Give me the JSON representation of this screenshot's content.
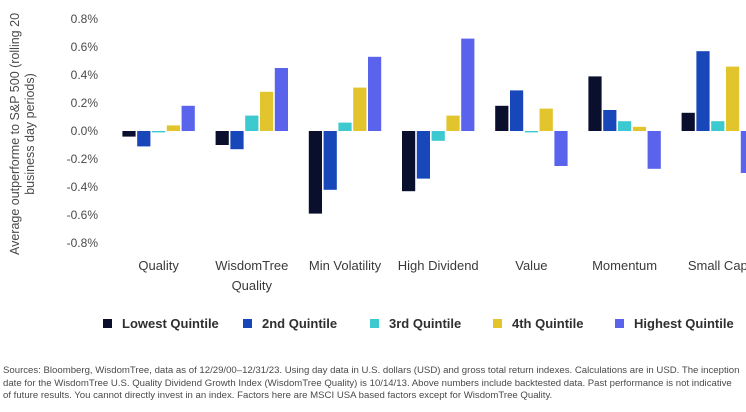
{
  "chart_data": {
    "type": "bar",
    "ylabel": "Average outperforme to S&P 500 (rolling 20 business day periods)",
    "ylabel_lines": [
      "Average outperforme to S&P 500 (rolling 20",
      "business day periods)"
    ],
    "ylim": [
      -0.8,
      0.8
    ],
    "yticks": [
      "0.8%",
      "0.6%",
      "0.4%",
      "0.2%",
      "0.0%",
      "-0.2%",
      "-0.4%",
      "-0.6%",
      "-0.8%"
    ],
    "categories": [
      "Quality",
      "WisdomTree Quality",
      "Min Volatility",
      "High Dividend",
      "Value",
      "Momentum",
      "Small Cap"
    ],
    "category_lines": [
      [
        "Quality"
      ],
      [
        "WisdomTree",
        "Quality"
      ],
      [
        "Min Volatility"
      ],
      [
        "High Dividend"
      ],
      [
        "Value"
      ],
      [
        "Momentum"
      ],
      [
        "Small Cap"
      ]
    ],
    "series": [
      {
        "name": "Lowest Quintile",
        "color": "#0b0f2e",
        "values": [
          -0.04,
          -0.1,
          -0.59,
          -0.43,
          0.18,
          0.39,
          0.13
        ]
      },
      {
        "name": "2nd Quintile",
        "color": "#1747b8",
        "values": [
          -0.11,
          -0.13,
          -0.42,
          -0.34,
          0.29,
          0.15,
          0.57
        ]
      },
      {
        "name": "3rd Quintile",
        "color": "#3cc9cf",
        "values": [
          -0.01,
          0.11,
          0.06,
          -0.07,
          -0.01,
          0.07,
          0.07
        ]
      },
      {
        "name": "4th Quintile",
        "color": "#e2c52c",
        "values": [
          0.04,
          0.28,
          0.31,
          0.11,
          0.16,
          0.03,
          0.46
        ]
      },
      {
        "name": "Highest Quintile",
        "color": "#5a63ec",
        "values": [
          0.18,
          0.45,
          0.53,
          0.66,
          -0.25,
          -0.27,
          -0.3
        ]
      }
    ],
    "legend_position": "bottom",
    "grid": false
  },
  "source_lines": [
    "Sources: Bloomberg, WisdomTree, data as of 12/29/00–12/31/23. Using day data in U.S. dollars (USD) and gross total return indexes. Calculations are in USD. The inception",
    "date for the WisdomTree U.S. Quality Dividend Growth Index (WisdomTree Quality) is 10/14/13. Above numbers include backtested data. Past performance is not indicative",
    "of future results. You cannot directly invest in an index. Factors here are MSCI USA based factors except for WisdomTree Quality."
  ]
}
